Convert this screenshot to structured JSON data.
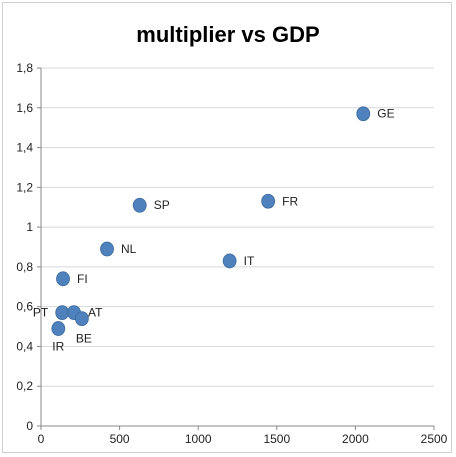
{
  "chart_data": {
    "type": "scatter",
    "title": "multiplier vs GDP",
    "xlabel": "",
    "ylabel": "",
    "xlim": [
      0,
      2500
    ],
    "ylim": [
      0,
      1.8
    ],
    "x_ticks": [
      "0",
      "500",
      "1000",
      "1500",
      "2000",
      "2500"
    ],
    "y_ticks": [
      "0",
      "0,2",
      "0,4",
      "0,6",
      "0,8",
      "1",
      "1,2",
      "1,4",
      "1,6",
      "1,8"
    ],
    "grid": "horizontal",
    "legend": "none",
    "marker_color": "#4f81bd",
    "points": [
      {
        "label": "GE",
        "x": 2050,
        "y": 1.57,
        "label_pos": "right"
      },
      {
        "label": "FR",
        "x": 1445,
        "y": 1.13,
        "label_pos": "right"
      },
      {
        "label": "SP",
        "x": 628,
        "y": 1.11,
        "label_pos": "right"
      },
      {
        "label": "IT",
        "x": 1200,
        "y": 0.83,
        "label_pos": "right"
      },
      {
        "label": "NL",
        "x": 420,
        "y": 0.89,
        "label_pos": "right"
      },
      {
        "label": "FI",
        "x": 140,
        "y": 0.74,
        "label_pos": "right"
      },
      {
        "label": "PT",
        "x": 135,
        "y": 0.57,
        "label_pos": "left"
      },
      {
        "label": "AT",
        "x": 210,
        "y": 0.57,
        "label_pos": "right"
      },
      {
        "label": "BE",
        "x": 260,
        "y": 0.54,
        "label_pos": "below-right"
      },
      {
        "label": "IR",
        "x": 110,
        "y": 0.49,
        "label_pos": "below"
      }
    ]
  }
}
